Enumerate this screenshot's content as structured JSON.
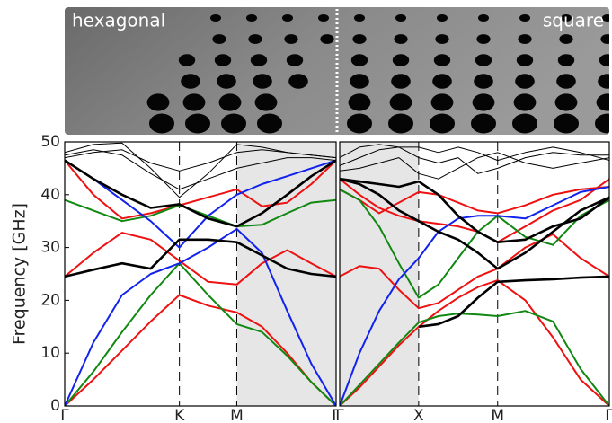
{
  "photo": {
    "left_label": "hexagonal",
    "right_label": "square"
  },
  "chart_data": [
    {
      "type": "line",
      "ylabel": "Frequency [GHz]",
      "x": [
        0,
        0.25,
        0.5,
        0.75,
        1,
        1.25,
        1.5,
        1.72,
        1.94,
        2.15,
        2.366
      ],
      "xlim": [
        0,
        2.366
      ],
      "xticks": [
        {
          "value": 0,
          "label": "Γ"
        },
        {
          "value": 1,
          "label": "K"
        },
        {
          "value": 1.5,
          "label": "M"
        },
        {
          "value": 2.366,
          "label": "Γ"
        }
      ],
      "ylim": [
        0,
        50
      ],
      "yticks": [
        0,
        10,
        20,
        30,
        40,
        50
      ],
      "shaded_region": [
        1.5,
        2.366
      ],
      "series": [
        {
          "color": "#ee1111",
          "linewidth": 2,
          "values": [
            0,
            5,
            10.5,
            16,
            21,
            19,
            17.7,
            15,
            10,
            4.5,
            0
          ]
        },
        {
          "color": "#ee1111",
          "linewidth": 2,
          "values": [
            24.5,
            29,
            32.8,
            31.5,
            27.5,
            23.5,
            23,
            27,
            29.5,
            27,
            24.5
          ]
        },
        {
          "color": "#ee1111",
          "linewidth": 2,
          "values": [
            46.5,
            40,
            35.5,
            36.5,
            38,
            39.5,
            41,
            37.8,
            38.5,
            42,
            46.5
          ]
        },
        {
          "color": "#118811",
          "linewidth": 2,
          "values": [
            0,
            6.5,
            14,
            21,
            27,
            21,
            15.5,
            14,
            9.5,
            4.5,
            0
          ]
        },
        {
          "color": "#118811",
          "linewidth": 2,
          "values": [
            39,
            37,
            35,
            36,
            38,
            36,
            34,
            34.3,
            36.5,
            38.5,
            39
          ]
        },
        {
          "color": "#1122ee",
          "linewidth": 2,
          "values": [
            0,
            12,
            21,
            25,
            27,
            30,
            33.5,
            29,
            18,
            8,
            0
          ]
        },
        {
          "color": "#1122ee",
          "linewidth": 2,
          "values": [
            46.5,
            43,
            39,
            35,
            30,
            36,
            40,
            42,
            43.5,
            45,
            46.5
          ]
        },
        {
          "color": "#000000",
          "linewidth": 2.6,
          "values": [
            24.5,
            25.8,
            27,
            26,
            31.5,
            31.5,
            31,
            28.5,
            26,
            25,
            24.5
          ]
        },
        {
          "color": "#000000",
          "linewidth": 2.6,
          "values": [
            46.5,
            43,
            40,
            37.5,
            38.2,
            35.5,
            34,
            36.5,
            40,
            43.5,
            46.5
          ]
        },
        {
          "color": "#000000",
          "linewidth": 1,
          "values": [
            47,
            48,
            48.5,
            46,
            44.5,
            46,
            48,
            48.5,
            48,
            47.5,
            47
          ]
        },
        {
          "color": "#000000",
          "linewidth": 1,
          "values": [
            47.5,
            48.5,
            47.5,
            44,
            41,
            43,
            45,
            46,
            47,
            47,
            46.5
          ]
        },
        {
          "color": "#000000",
          "linewidth": 1,
          "values": [
            48,
            49.5,
            49.8,
            45,
            39.5,
            44,
            49.5,
            49,
            48,
            47.5,
            47
          ]
        }
      ]
    },
    {
      "type": "line",
      "x": [
        0,
        0.25,
        0.5,
        0.75,
        1,
        1.25,
        1.5,
        1.75,
        2,
        2.35,
        2.7,
        3.05,
        3.414
      ],
      "xlim": [
        0,
        3.414
      ],
      "xticks": [
        {
          "value": 0,
          "label": "Γ"
        },
        {
          "value": 1,
          "label": "X"
        },
        {
          "value": 2,
          "label": "M"
        },
        {
          "value": 3.414,
          "label": "Γ"
        }
      ],
      "ylim": [
        0,
        50
      ],
      "shaded_region": [
        0,
        1
      ],
      "series": [
        {
          "color": "#ee1111",
          "linewidth": 2,
          "values": [
            0,
            3.5,
            7.5,
            11.5,
            15,
            18,
            20.5,
            22.5,
            23.8,
            20,
            13,
            5,
            0
          ]
        },
        {
          "color": "#ee1111",
          "linewidth": 2,
          "values": [
            24.5,
            26.5,
            26,
            22,
            18.5,
            19.5,
            22,
            24.5,
            26,
            30,
            32.5,
            28,
            24.5
          ]
        },
        {
          "color": "#ee1111",
          "linewidth": 2,
          "values": [
            41,
            39,
            36.5,
            38.5,
            40.5,
            40,
            38.5,
            37,
            36.5,
            38,
            40,
            41,
            41.5
          ]
        },
        {
          "color": "#ee1111",
          "linewidth": 2,
          "values": [
            43,
            40,
            37.5,
            36,
            35,
            34.5,
            34,
            33,
            31,
            34,
            37,
            39,
            43
          ]
        },
        {
          "color": "#118811",
          "linewidth": 2,
          "values": [
            0,
            4,
            8,
            12,
            15.8,
            17,
            17.5,
            17.3,
            17,
            18,
            16,
            7,
            0
          ]
        },
        {
          "color": "#118811",
          "linewidth": 2,
          "values": [
            41,
            39,
            34,
            27,
            20.5,
            23,
            28,
            33,
            36,
            32,
            30.5,
            36,
            39
          ]
        },
        {
          "color": "#1122ee",
          "linewidth": 2,
          "values": [
            0,
            10,
            18,
            24,
            28,
            33,
            35.5,
            36,
            36,
            35.5,
            38,
            40.5,
            41.5
          ]
        },
        {
          "color": "#000000",
          "linewidth": 2.6,
          "values": [
            43,
            42,
            40,
            37,
            35,
            33,
            31.5,
            29,
            26,
            29,
            33,
            37,
            39.5
          ]
        },
        {
          "color": "#000000",
          "linewidth": 2.6,
          "values": [
            null,
            null,
            null,
            null,
            15,
            15.5,
            17,
            20.5,
            23.5,
            23.8,
            24,
            24.3,
            24.5
          ]
        },
        {
          "color": "#000000",
          "linewidth": 2.6,
          "values": [
            43,
            42.5,
            42,
            41.5,
            42.5,
            40,
            36,
            33,
            31,
            31.5,
            34,
            35.5,
            39.5
          ]
        },
        {
          "color": "#000000",
          "linewidth": 1,
          "values": [
            44.5,
            45,
            46,
            47,
            44,
            43,
            45,
            47,
            48,
            46,
            45,
            46,
            47
          ]
        },
        {
          "color": "#000000",
          "linewidth": 1,
          "values": [
            45.5,
            47,
            48.5,
            49,
            47,
            46,
            47,
            44,
            45,
            47,
            48,
            47.5,
            47.5
          ]
        },
        {
          "color": "#000000",
          "linewidth": 1,
          "values": [
            47,
            49,
            49.5,
            49,
            49,
            48,
            49,
            48,
            46.5,
            48,
            49,
            48,
            46.5
          ]
        }
      ]
    }
  ]
}
